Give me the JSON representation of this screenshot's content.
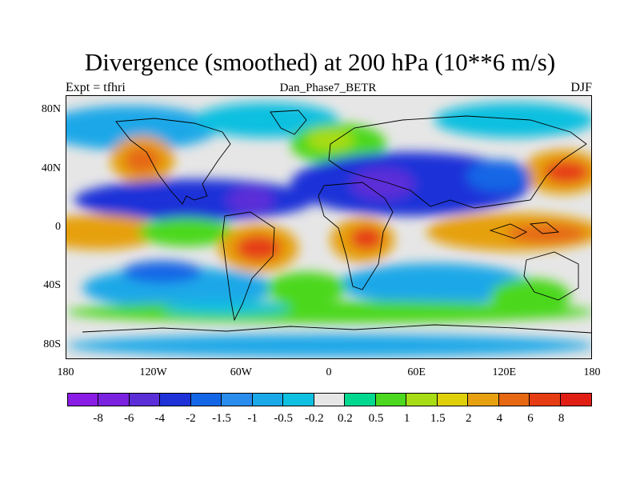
{
  "title": "Divergence (smoothed) at 200 hPa (10**6 m/s)",
  "subtitle_left": "Expt = tfhri",
  "subtitle_center": "Dan_Phase7_BETR",
  "subtitle_right": "DJF",
  "chart_data": {
    "type": "heatmap",
    "title": "Divergence (smoothed) at 200 hPa (10**6 m/s)",
    "variable": "Divergence (smoothed)",
    "units": "10**6 m/s",
    "level": "200 hPa",
    "season": "DJF",
    "experiment": "tfhri",
    "run": "Dan_Phase7_BETR",
    "xlim": [
      -180,
      180
    ],
    "ylim": [
      -90,
      90
    ],
    "x_ticks": [
      {
        "value": -180,
        "label": "180"
      },
      {
        "value": -120,
        "label": "120W"
      },
      {
        "value": -60,
        "label": "60W"
      },
      {
        "value": 0,
        "label": "0"
      },
      {
        "value": 60,
        "label": "60E"
      },
      {
        "value": 120,
        "label": "120E"
      },
      {
        "value": 180,
        "label": "180"
      }
    ],
    "y_ticks": [
      {
        "value": 80,
        "label": "80N"
      },
      {
        "value": 40,
        "label": "40N"
      },
      {
        "value": 0,
        "label": "0"
      },
      {
        "value": -40,
        "label": "40S"
      },
      {
        "value": -80,
        "label": "80S"
      }
    ],
    "colorbar": {
      "levels": [
        "-8",
        "-6",
        "-4",
        "-2",
        "-1.5",
        "-1",
        "-0.5",
        "-0.2",
        "0.2",
        "0.5",
        "1",
        "1.5",
        "2",
        "4",
        "6",
        "8"
      ],
      "colors": [
        "#8a1ce6",
        "#7a22e0",
        "#5b2ed8",
        "#1e32d8",
        "#1466e6",
        "#2a8cec",
        "#1aa8e8",
        "#10c0e0",
        "#e6e6e6",
        "#00d890",
        "#4cd81e",
        "#a8dc14",
        "#e0d00a",
        "#e6a010",
        "#e66812",
        "#e63c14",
        "#e01e14"
      ]
    },
    "features": [
      {
        "lon": -100,
        "lat": 25,
        "value": -3,
        "desc": "convergence band over southern US / Gulf"
      },
      {
        "lon": 25,
        "lat": 25,
        "value": -4,
        "desc": "strong convergence over N Africa / Middle East"
      },
      {
        "lon": -50,
        "lat": -15,
        "value": 5,
        "desc": "strong divergence over Amazon / Brazil"
      },
      {
        "lon": 25,
        "lat": -10,
        "value": 5,
        "desc": "divergence over central/southern Africa"
      },
      {
        "lon": 140,
        "lat": 0,
        "value": 3,
        "desc": "divergence over Maritime Continent / W Pacific"
      },
      {
        "lon": 160,
        "lat": 35,
        "value": 5,
        "desc": "divergence over NW Pacific storm track"
      },
      {
        "lon": -160,
        "lat": 35,
        "value": 2,
        "desc": "divergence over NE Pacific"
      },
      {
        "lon": -20,
        "lat": 60,
        "value": 1.5,
        "desc": "divergence over N Atlantic"
      },
      {
        "lon": -120,
        "lat": -15,
        "value": -1.5,
        "desc": "convergence over SE Pacific"
      },
      {
        "lon": 80,
        "lat": -30,
        "value": -1,
        "desc": "convergence over S Indian Ocean"
      }
    ]
  }
}
